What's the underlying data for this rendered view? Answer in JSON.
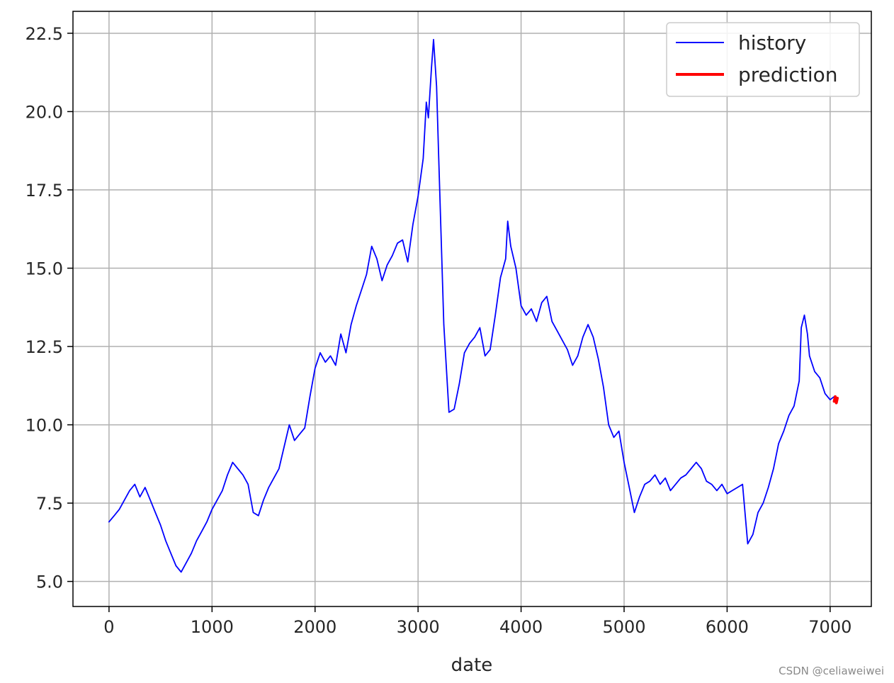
{
  "chart_data": {
    "type": "line",
    "xlabel": "date",
    "ylabel": "",
    "xlim": [
      -350,
      7400
    ],
    "ylim": [
      4.2,
      23.2
    ],
    "xticks": [
      0,
      1000,
      2000,
      3000,
      4000,
      5000,
      6000,
      7000
    ],
    "yticks": [
      5.0,
      7.5,
      10.0,
      12.5,
      15.0,
      17.5,
      20.0,
      22.5
    ],
    "grid": true,
    "legend_position": "top-right",
    "series": [
      {
        "name": "history",
        "color": "#0000ff",
        "x": [
          0,
          50,
          100,
          150,
          200,
          250,
          300,
          350,
          400,
          450,
          500,
          550,
          600,
          650,
          700,
          750,
          800,
          850,
          900,
          950,
          1000,
          1050,
          1100,
          1150,
          1200,
          1250,
          1300,
          1350,
          1400,
          1450,
          1500,
          1550,
          1600,
          1650,
          1700,
          1750,
          1800,
          1850,
          1900,
          1950,
          2000,
          2050,
          2100,
          2150,
          2200,
          2250,
          2300,
          2350,
          2400,
          2450,
          2500,
          2550,
          2600,
          2650,
          2700,
          2750,
          2800,
          2850,
          2900,
          2950,
          3000,
          3050,
          3080,
          3100,
          3130,
          3150,
          3180,
          3200,
          3250,
          3300,
          3350,
          3400,
          3450,
          3500,
          3550,
          3600,
          3650,
          3700,
          3750,
          3800,
          3850,
          3870,
          3900,
          3950,
          4000,
          4050,
          4100,
          4150,
          4200,
          4250,
          4300,
          4350,
          4400,
          4450,
          4500,
          4550,
          4600,
          4650,
          4700,
          4750,
          4800,
          4850,
          4900,
          4950,
          5000,
          5050,
          5100,
          5150,
          5200,
          5250,
          5300,
          5350,
          5400,
          5450,
          5500,
          5550,
          5600,
          5650,
          5700,
          5750,
          5800,
          5850,
          5900,
          5950,
          6000,
          6050,
          6100,
          6150,
          6200,
          6250,
          6300,
          6350,
          6400,
          6450,
          6500,
          6550,
          6600,
          6650,
          6700,
          6720,
          6750,
          6780,
          6800,
          6850,
          6900,
          6950,
          7000,
          7040
        ],
        "y": [
          6.9,
          7.1,
          7.3,
          7.6,
          7.9,
          8.1,
          7.7,
          8.0,
          7.6,
          7.2,
          6.8,
          6.3,
          5.9,
          5.5,
          5.3,
          5.6,
          5.9,
          6.3,
          6.6,
          6.9,
          7.3,
          7.6,
          7.9,
          8.4,
          8.8,
          8.6,
          8.4,
          8.1,
          7.2,
          7.1,
          7.6,
          8.0,
          8.3,
          8.6,
          9.3,
          10.0,
          9.5,
          9.7,
          9.9,
          10.9,
          11.8,
          12.3,
          12.0,
          12.2,
          11.9,
          12.9,
          12.3,
          13.2,
          13.8,
          14.3,
          14.8,
          15.7,
          15.3,
          14.6,
          15.1,
          15.4,
          15.8,
          15.9,
          15.2,
          16.4,
          17.3,
          18.5,
          20.3,
          19.8,
          21.4,
          22.3,
          20.8,
          18.6,
          13.2,
          10.4,
          10.5,
          11.3,
          12.3,
          12.6,
          12.8,
          13.1,
          12.2,
          12.4,
          13.5,
          14.7,
          15.3,
          16.5,
          15.7,
          15.0,
          13.8,
          13.5,
          13.7,
          13.3,
          13.9,
          14.1,
          13.3,
          13.0,
          12.7,
          12.4,
          11.9,
          12.2,
          12.8,
          13.2,
          12.8,
          12.1,
          11.2,
          10.0,
          9.6,
          9.8,
          8.8,
          8.0,
          7.2,
          7.7,
          8.1,
          8.2,
          8.4,
          8.1,
          8.3,
          7.9,
          8.1,
          8.3,
          8.4,
          8.6,
          8.8,
          8.6,
          8.2,
          8.1,
          7.9,
          8.1,
          7.8,
          7.9,
          8.0,
          8.1,
          6.2,
          6.5,
          7.2,
          7.5,
          8.0,
          8.6,
          9.4,
          9.8,
          10.3,
          10.6,
          11.4,
          13.1,
          13.5,
          12.9,
          12.2,
          11.7,
          11.5,
          11.0,
          10.8,
          10.9
        ]
      },
      {
        "name": "prediction",
        "color": "#ff0000",
        "x": [
          7040,
          7050,
          7060,
          7070
        ],
        "y": [
          10.75,
          10.9,
          10.7,
          10.85
        ]
      }
    ]
  },
  "watermark": "CSDN @celiaweiwei"
}
